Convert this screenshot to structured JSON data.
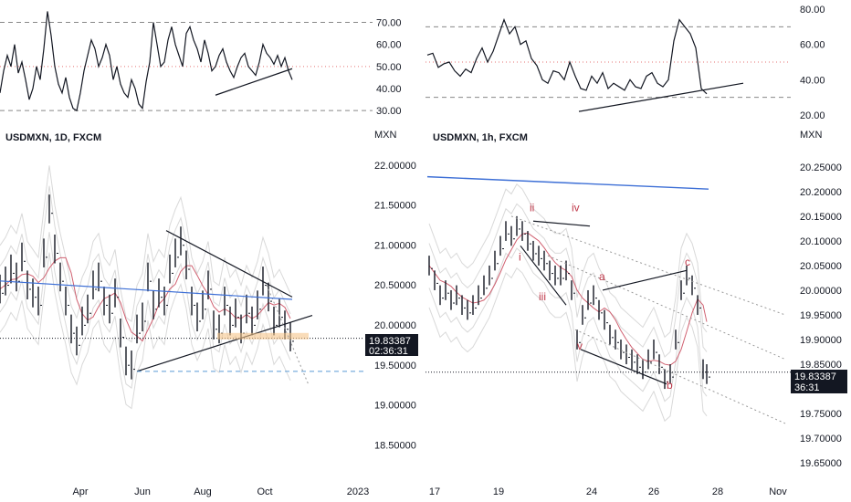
{
  "chart_data": [
    {
      "type": "line",
      "panel": "left-indicator",
      "y_ticks": [
        "70.00",
        "60.00",
        "50.00",
        "40.00",
        "30.00"
      ],
      "ylim": [
        28,
        76
      ],
      "levels": [
        70,
        50,
        30
      ],
      "series": [
        {
          "x": [
            0,
            4,
            8,
            12,
            16,
            20,
            24,
            28,
            32,
            36,
            40,
            44,
            48,
            52,
            56,
            60,
            64,
            68,
            72,
            76,
            80,
            84,
            88,
            92,
            96,
            100,
            104,
            108,
            112,
            116,
            120,
            124,
            128,
            132,
            136,
            140,
            144,
            148,
            152,
            156,
            160,
            164,
            168,
            172,
            176,
            180,
            184,
            188,
            192,
            196,
            200,
            204,
            208,
            212,
            216,
            220,
            224,
            228,
            232,
            236,
            240,
            244,
            248,
            252,
            256,
            260,
            264,
            268,
            272,
            276,
            280,
            284,
            288,
            292,
            296,
            300,
            304,
            308,
            312,
            316,
            320
          ],
          "values": [
            38,
            48,
            55,
            50,
            60,
            47,
            52,
            44,
            35,
            40,
            50,
            44,
            58,
            75,
            64,
            50,
            42,
            38,
            45,
            36,
            31,
            30,
            38,
            48,
            55,
            62,
            58,
            50,
            54,
            60,
            55,
            44,
            50,
            42,
            38,
            36,
            44,
            40,
            33,
            31,
            43,
            52,
            70,
            60,
            50,
            52,
            62,
            68,
            60,
            55,
            50,
            65,
            68,
            62,
            58,
            52,
            62,
            56,
            48,
            50,
            55,
            58,
            52,
            48,
            45,
            50,
            54,
            56,
            50,
            48,
            46,
            52,
            60,
            56,
            54,
            51,
            55,
            50,
            54,
            48,
            44
          ]
        }
      ],
      "trendline": {
        "x": [
          236,
          320
        ],
        "values": [
          37,
          49
        ]
      }
    },
    {
      "type": "line",
      "panel": "right-indicator",
      "y_ticks": [
        "80.00",
        "60.00",
        "40.00",
        "20.00"
      ],
      "ylim": [
        20,
        80
      ],
      "levels": [
        70,
        50,
        30
      ],
      "series": [
        {
          "x": [
            468,
            474,
            480,
            486,
            492,
            498,
            504,
            510,
            516,
            522,
            528,
            534,
            540,
            546,
            552,
            558,
            564,
            570,
            576,
            582,
            588,
            594,
            600,
            606,
            612,
            618,
            624,
            630,
            636,
            642,
            648,
            654,
            660,
            666,
            672,
            678,
            684,
            690,
            696,
            702,
            708,
            714,
            720,
            726,
            732,
            738,
            744,
            750,
            756,
            762,
            768,
            774
          ],
          "values": [
            54,
            55,
            47,
            49,
            50,
            45,
            42,
            46,
            44,
            52,
            58,
            50,
            56,
            65,
            74,
            66,
            70,
            60,
            62,
            52,
            48,
            40,
            38,
            45,
            44,
            40,
            50,
            42,
            35,
            34,
            42,
            38,
            44,
            35,
            38,
            36,
            34,
            40,
            36,
            35,
            42,
            44,
            38,
            36,
            40,
            62,
            74,
            70,
            66,
            58,
            35,
            32
          ]
        }
      ],
      "trendline": {
        "x": [
          634,
          814
        ],
        "values": [
          22,
          38
        ]
      }
    },
    {
      "type": "bar",
      "panel": "left-main",
      "title": "USDMXN, 1D, FXCM",
      "ylabel": "MXN",
      "y_ticks": [
        "22.00000",
        "21.50000",
        "21.00000",
        "20.50000",
        "20.00000",
        "19.50000",
        "19.00000",
        "18.50000"
      ],
      "ylim": [
        18.3,
        22.1
      ],
      "x_ticks": [
        "Apr",
        "Jun",
        "Aug",
        "Oct",
        "2023"
      ],
      "last_price": "19.83387",
      "countdown": "02:36:31",
      "series": [
        {
          "name": "",
          "x": [
            0,
            6,
            12,
            18,
            24,
            30,
            36,
            42,
            48,
            54,
            60,
            66,
            72,
            78,
            84,
            90,
            96,
            102,
            108,
            114,
            120,
            126,
            132,
            138,
            144,
            150,
            156,
            162,
            168,
            174,
            180,
            186,
            192,
            198,
            204,
            210,
            216,
            222,
            228,
            234,
            240,
            246,
            252,
            258,
            264,
            270,
            276,
            282,
            288,
            294,
            300,
            306,
            312,
            318
          ],
          "values": [
            20.45,
            20.55,
            20.7,
            20.6,
            20.85,
            20.5,
            20.4,
            20.3,
            20.9,
            21.45,
            20.95,
            20.6,
            20.3,
            19.95,
            19.8,
            20.05,
            20.2,
            20.5,
            20.6,
            20.3,
            20.2,
            20.4,
            19.9,
            19.55,
            19.5,
            19.95,
            20.1,
            20.6,
            20.25,
            20.4,
            20.3,
            20.7,
            20.9,
            21.05,
            20.75,
            20.3,
            20.1,
            20.25,
            20.5,
            20.0,
            19.95,
            20.3,
            20.05,
            20.15,
            19.95,
            20.2,
            20.05,
            20.25,
            20.55,
            20.35,
            20.05,
            20.15,
            20.0,
            19.85
          ]
        }
      ],
      "triangle": {
        "upper": {
          "x": [
            182,
            320
          ],
          "values": [
            21.18,
            20.35
          ]
        },
        "lower": {
          "x": [
            150,
            342
          ],
          "values": [
            19.42,
            20.12
          ]
        }
      },
      "support_dashed": 19.42,
      "zone": {
        "x": [
          238,
          338
        ],
        "values": [
          19.82,
          19.9
        ]
      }
    },
    {
      "type": "bar",
      "panel": "right-main",
      "title": "USDMXN, 1h, FXCM",
      "ylabel": "MXN",
      "y_ticks": [
        "20.25000",
        "20.20000",
        "20.15000",
        "20.10000",
        "20.05000",
        "20.00000",
        "19.95000",
        "19.90000",
        "19.85000",
        "19.80000",
        "19.75000",
        "19.70000",
        "19.65000"
      ],
      "ylim": [
        19.63,
        20.27
      ],
      "x_ticks": [
        "17",
        "19",
        "24",
        "26",
        "28",
        "Nov"
      ],
      "last_price": "19.83387",
      "countdown": "36:31",
      "waves": [
        "i",
        "ii",
        "iii",
        "iv",
        "v",
        "a",
        "b",
        "c"
      ],
      "series": [
        {
          "name": "",
          "x": [
            470,
            476,
            482,
            488,
            494,
            500,
            506,
            512,
            518,
            524,
            530,
            536,
            542,
            548,
            554,
            560,
            566,
            572,
            578,
            584,
            590,
            596,
            602,
            608,
            614,
            620,
            626,
            632,
            638,
            644,
            650,
            656,
            662,
            668,
            674,
            680,
            686,
            692,
            698,
            704,
            710,
            716,
            722,
            728,
            734,
            740,
            746,
            752,
            758,
            764,
            770,
            774
          ],
          "values": [
            20.05,
            20.02,
            19.99,
            20.0,
            19.98,
            19.99,
            19.97,
            19.96,
            19.97,
            19.99,
            20.01,
            20.03,
            20.06,
            20.09,
            20.12,
            20.11,
            20.13,
            20.12,
            20.1,
            20.08,
            20.07,
            20.06,
            20.04,
            20.03,
            20.03,
            20.04,
            20.0,
            19.9,
            19.95,
            19.98,
            19.99,
            19.96,
            19.94,
            19.91,
            19.9,
            19.88,
            19.87,
            19.86,
            19.85,
            19.84,
            19.86,
            19.88,
            19.85,
            19.82,
            19.83,
            19.9,
            20.0,
            20.03,
            20.01,
            19.97,
            19.84,
            19.83
          ]
        }
      ],
      "ma_blue": {
        "x": [
          468,
          776
        ],
        "values": [
          20.23,
          20.205
        ]
      }
    }
  ]
}
